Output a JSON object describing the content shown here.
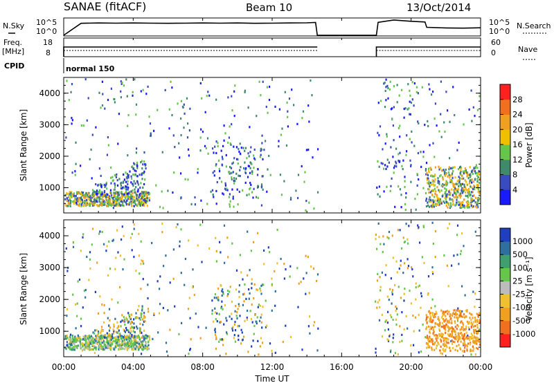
{
  "header": {
    "title": "SANAE (fitACF)",
    "beam": "Beam 10",
    "date": "13/Oct/2014"
  },
  "chart_data": [
    {
      "type": "line",
      "name": "noise",
      "left_label": "N.Sky",
      "left_ticks": [
        "10^5",
        "10^0"
      ],
      "right_label": "N.Search",
      "right_ticks": [
        "10^5",
        "10^0"
      ],
      "x_hours": [
        0,
        1,
        2,
        3,
        4,
        5,
        6,
        7,
        8,
        9,
        10,
        11,
        12,
        13,
        14,
        14.5,
        14.6,
        18,
        18.1,
        19,
        20,
        20.8,
        20.9,
        22,
        23,
        24
      ],
      "y_frac": [
        0.0,
        0.72,
        0.74,
        0.73,
        0.74,
        0.73,
        0.72,
        0.73,
        0.74,
        0.73,
        0.74,
        0.72,
        0.73,
        0.74,
        0.75,
        0.77,
        0.0,
        0.0,
        0.78,
        0.92,
        0.84,
        0.8,
        0.48,
        0.44,
        0.43,
        0.45
      ]
    },
    {
      "type": "line",
      "name": "frequency-nave",
      "left_label": "Freq.",
      "left_unit": "[MHz]",
      "left_ticks": [
        "18",
        "8"
      ],
      "right_label": "Nave",
      "right_ticks": [
        "60",
        "0"
      ],
      "cpid_label": "CPID",
      "cpid_text": "normal 150",
      "segments": [
        {
          "start": 0.0,
          "end": 14.6
        },
        {
          "start": 18.0,
          "end": 24.0
        }
      ]
    },
    {
      "type": "scatter",
      "name": "power",
      "ylabel": "Slant Range [km]",
      "yticks": [
        "1000",
        "2000",
        "3000",
        "4000"
      ],
      "colorbar_label": "Power [dB]",
      "colorbar_ticks": [
        "4",
        "8",
        "12",
        "16",
        "20",
        "24",
        "28"
      ],
      "colorbar_colors": [
        "#1a1aff",
        "#3a4bbf",
        "#3e8a6a",
        "#66c64a",
        "#f0c000",
        "#f0a020",
        "#f07020",
        "#ff2020"
      ]
    },
    {
      "type": "scatter",
      "name": "velocity",
      "ylabel": "Slant Range [km]",
      "yticks": [
        "1000",
        "2000",
        "3000",
        "4000"
      ],
      "colorbar_label": "Velocity [m s⁻¹]",
      "colorbar_ticks": [
        "1000",
        "500",
        "100",
        "25",
        "-25",
        "-100",
        "-500",
        "-1000"
      ],
      "colorbar_colors": [
        "#1f3fbf",
        "#2f6f9f",
        "#3f9f6f",
        "#66c64a",
        "#bcbcbc",
        "#f0c030",
        "#f0a020",
        "#f07020",
        "#ff2020"
      ]
    }
  ],
  "xaxis": {
    "label": "Time UT",
    "ticks": [
      "00:00",
      "04:00",
      "08:00",
      "12:00",
      "16:00",
      "20:00",
      "00:00"
    ]
  }
}
